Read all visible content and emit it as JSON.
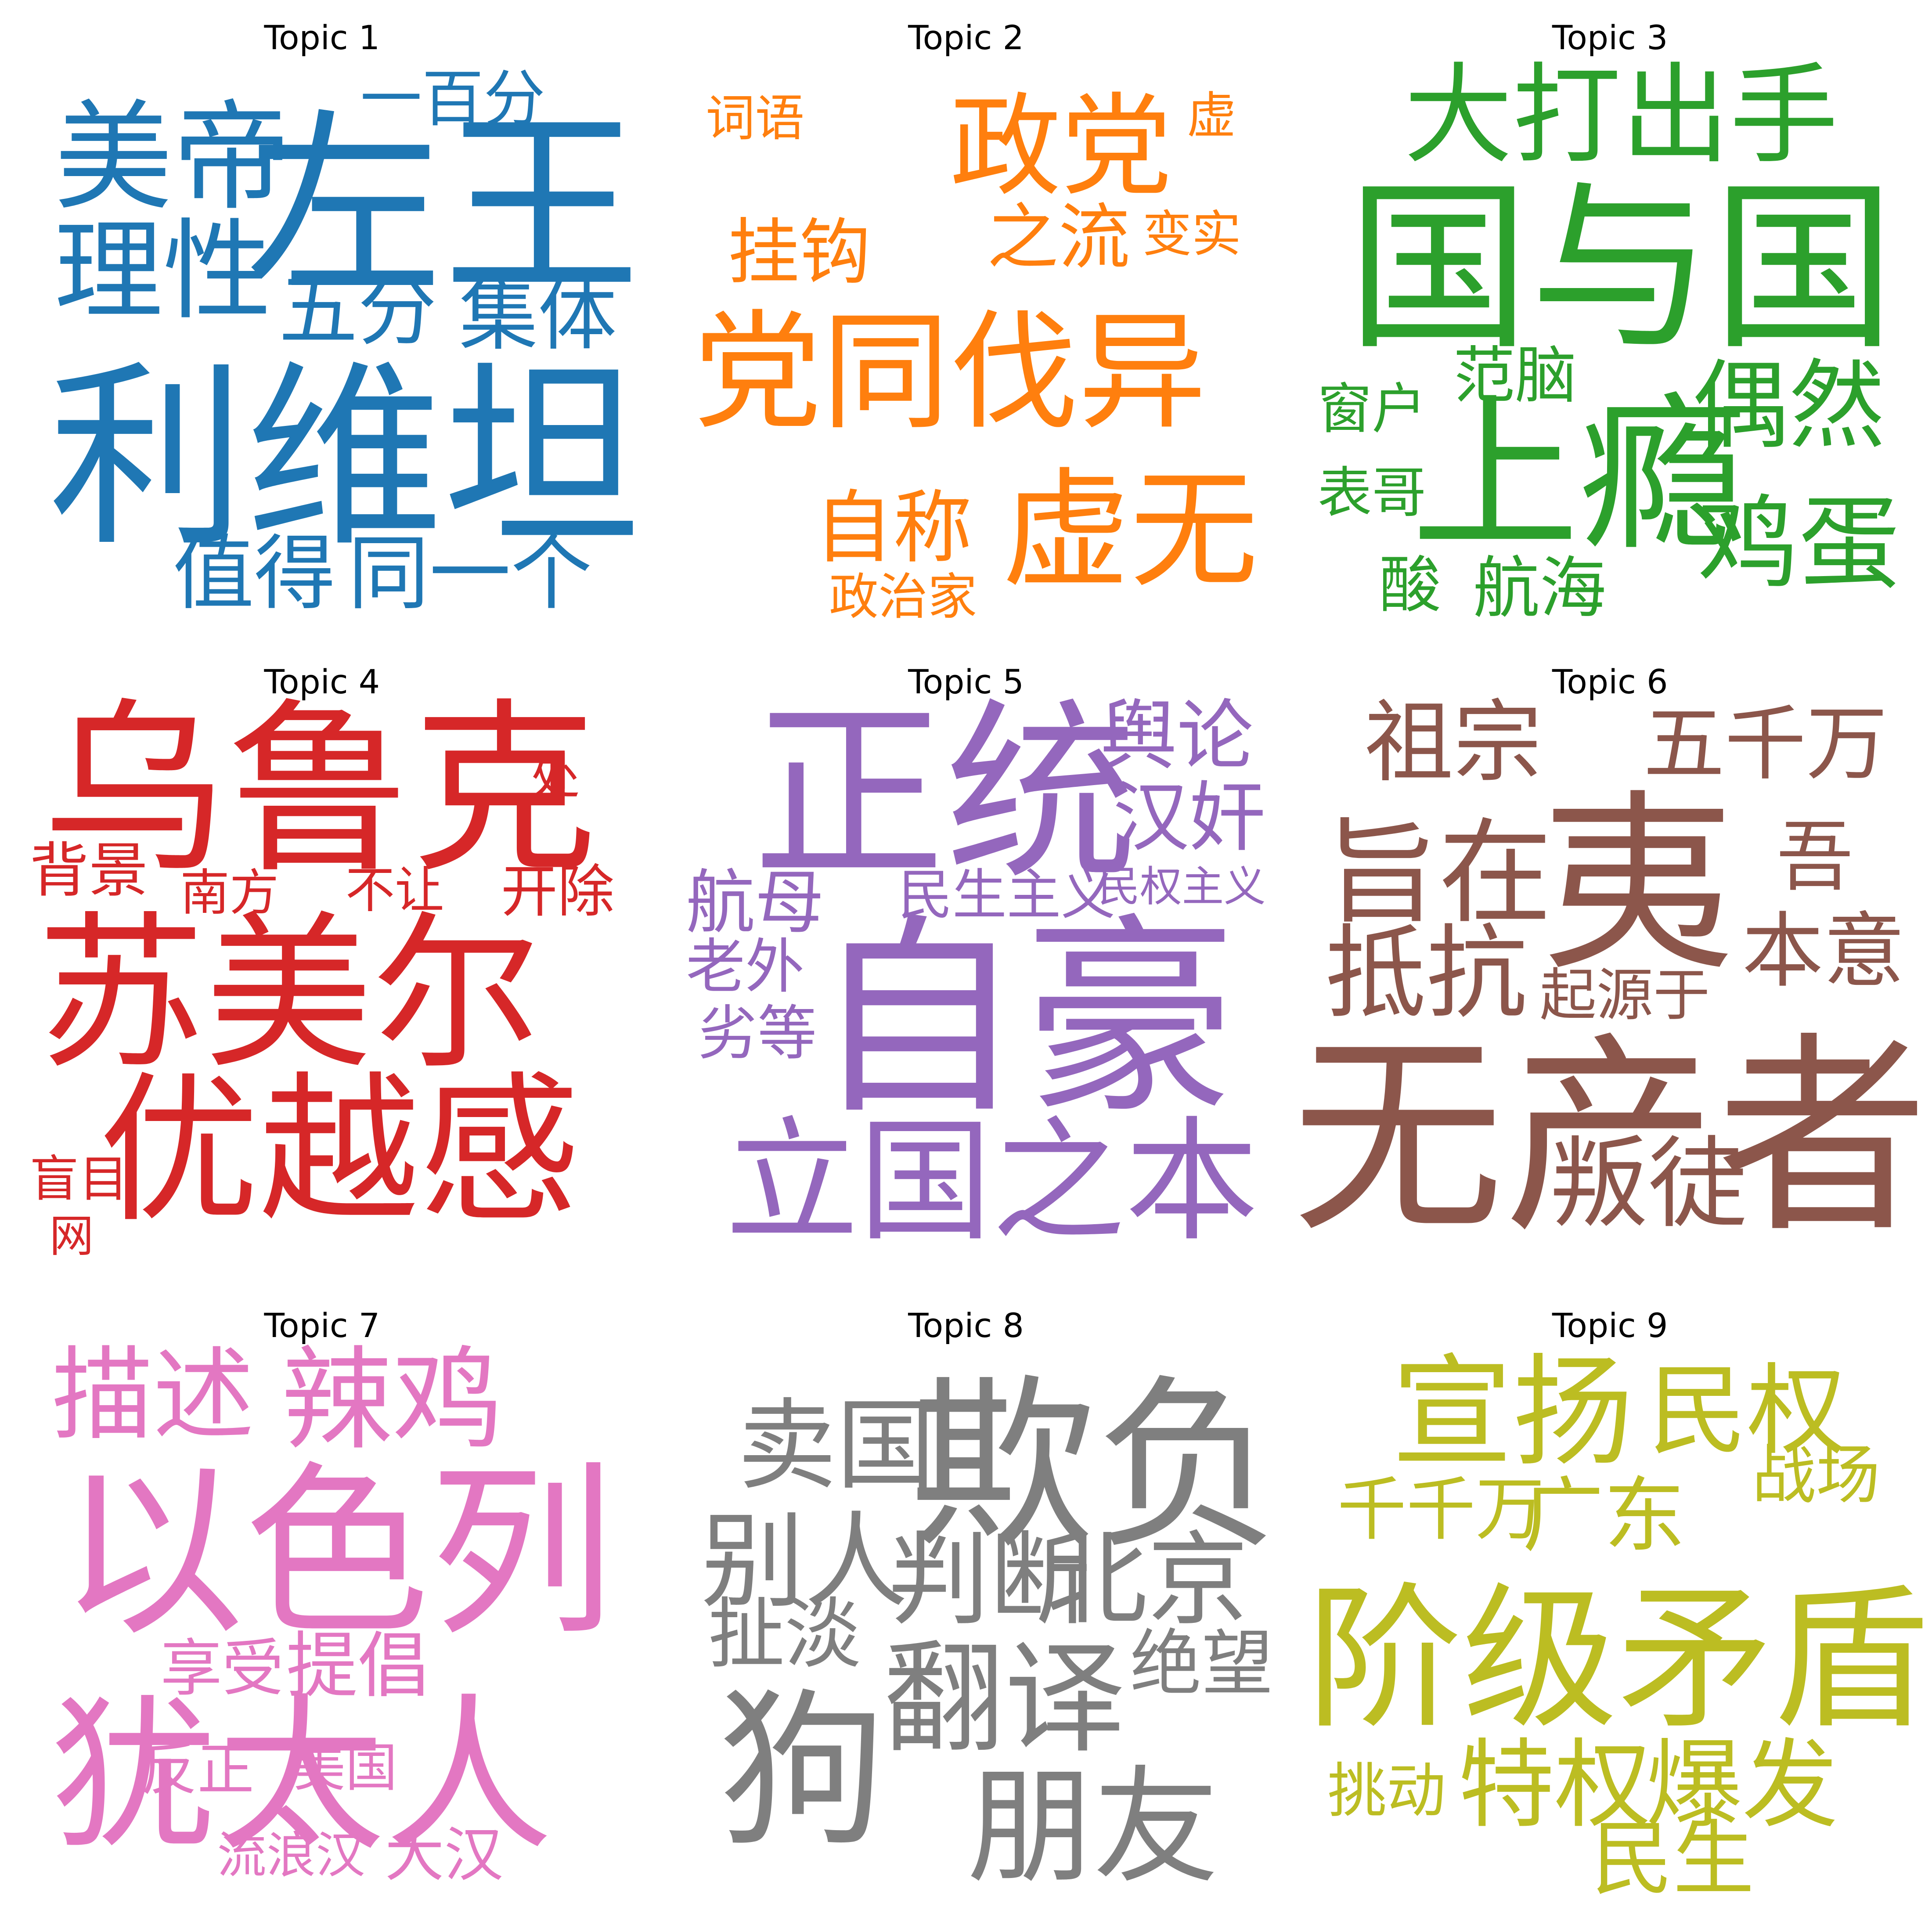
{
  "figure": {
    "topics": [
      {
        "title": "Topic 1",
        "color": "#1f77b4",
        "words": [
          "一百分",
          "美帝",
          "左王",
          "理性",
          "五分",
          "集体",
          "利维坦",
          "值得",
          "同一个"
        ]
      },
      {
        "title": "Topic 2",
        "color": "#ff7f0e",
        "words": [
          "词语",
          "政党",
          "虚",
          "挂钩",
          "之流",
          "变实",
          "党同伐异",
          "自称",
          "虚无",
          "政治家"
        ]
      },
      {
        "title": "Topic 3",
        "color": "#2ca02c",
        "words": [
          "大打出手",
          "国与国",
          "范脑",
          "窗户",
          "上瘾",
          "偶然",
          "表哥",
          "酸",
          "航海",
          "鸡蛋"
        ]
      },
      {
        "title": "Topic 4",
        "color": "#d62728",
        "words": [
          "乌鲁克",
          "处",
          "背景",
          "南方",
          "不让",
          "开除",
          "苏美尔",
          "优越感",
          "盲目",
          "网"
        ]
      },
      {
        "title": "Topic 5",
        "color": "#9467bd",
        "words": [
          "正统",
          "舆论",
          "汉奸",
          "航母",
          "民生主义",
          "民权主义",
          "老外",
          "劣等",
          "自豪",
          "立国之本"
        ]
      },
      {
        "title": "Topic 6",
        "color": "#8c564b",
        "words": [
          "祖宗",
          "五千万",
          "旨在",
          "夷",
          "吾",
          "抵抗",
          "本意",
          "起源于",
          "无产者",
          "叛徒"
        ]
      },
      {
        "title": "Topic 7",
        "color": "#e377c2",
        "words": [
          "描述",
          "辣鸡",
          "以色列",
          "享受",
          "提倡",
          "犹太人",
          "反正",
          "美国",
          "流浪汉",
          "大汉"
        ]
      },
      {
        "title": "Topic 8",
        "color": "#7f7f7f",
        "words": [
          "卖国",
          "欺负",
          "别人",
          "判断",
          "北京",
          "扯淡",
          "翻译",
          "绝望",
          "狗",
          "朋友"
        ]
      },
      {
        "title": "Topic 9",
        "color": "#bcbd22",
        "words": [
          "宣扬",
          "民权",
          "战场",
          "千千万",
          "广东",
          "阶级矛盾",
          "挑动",
          "特权",
          "爆发",
          "民生"
        ]
      }
    ]
  }
}
